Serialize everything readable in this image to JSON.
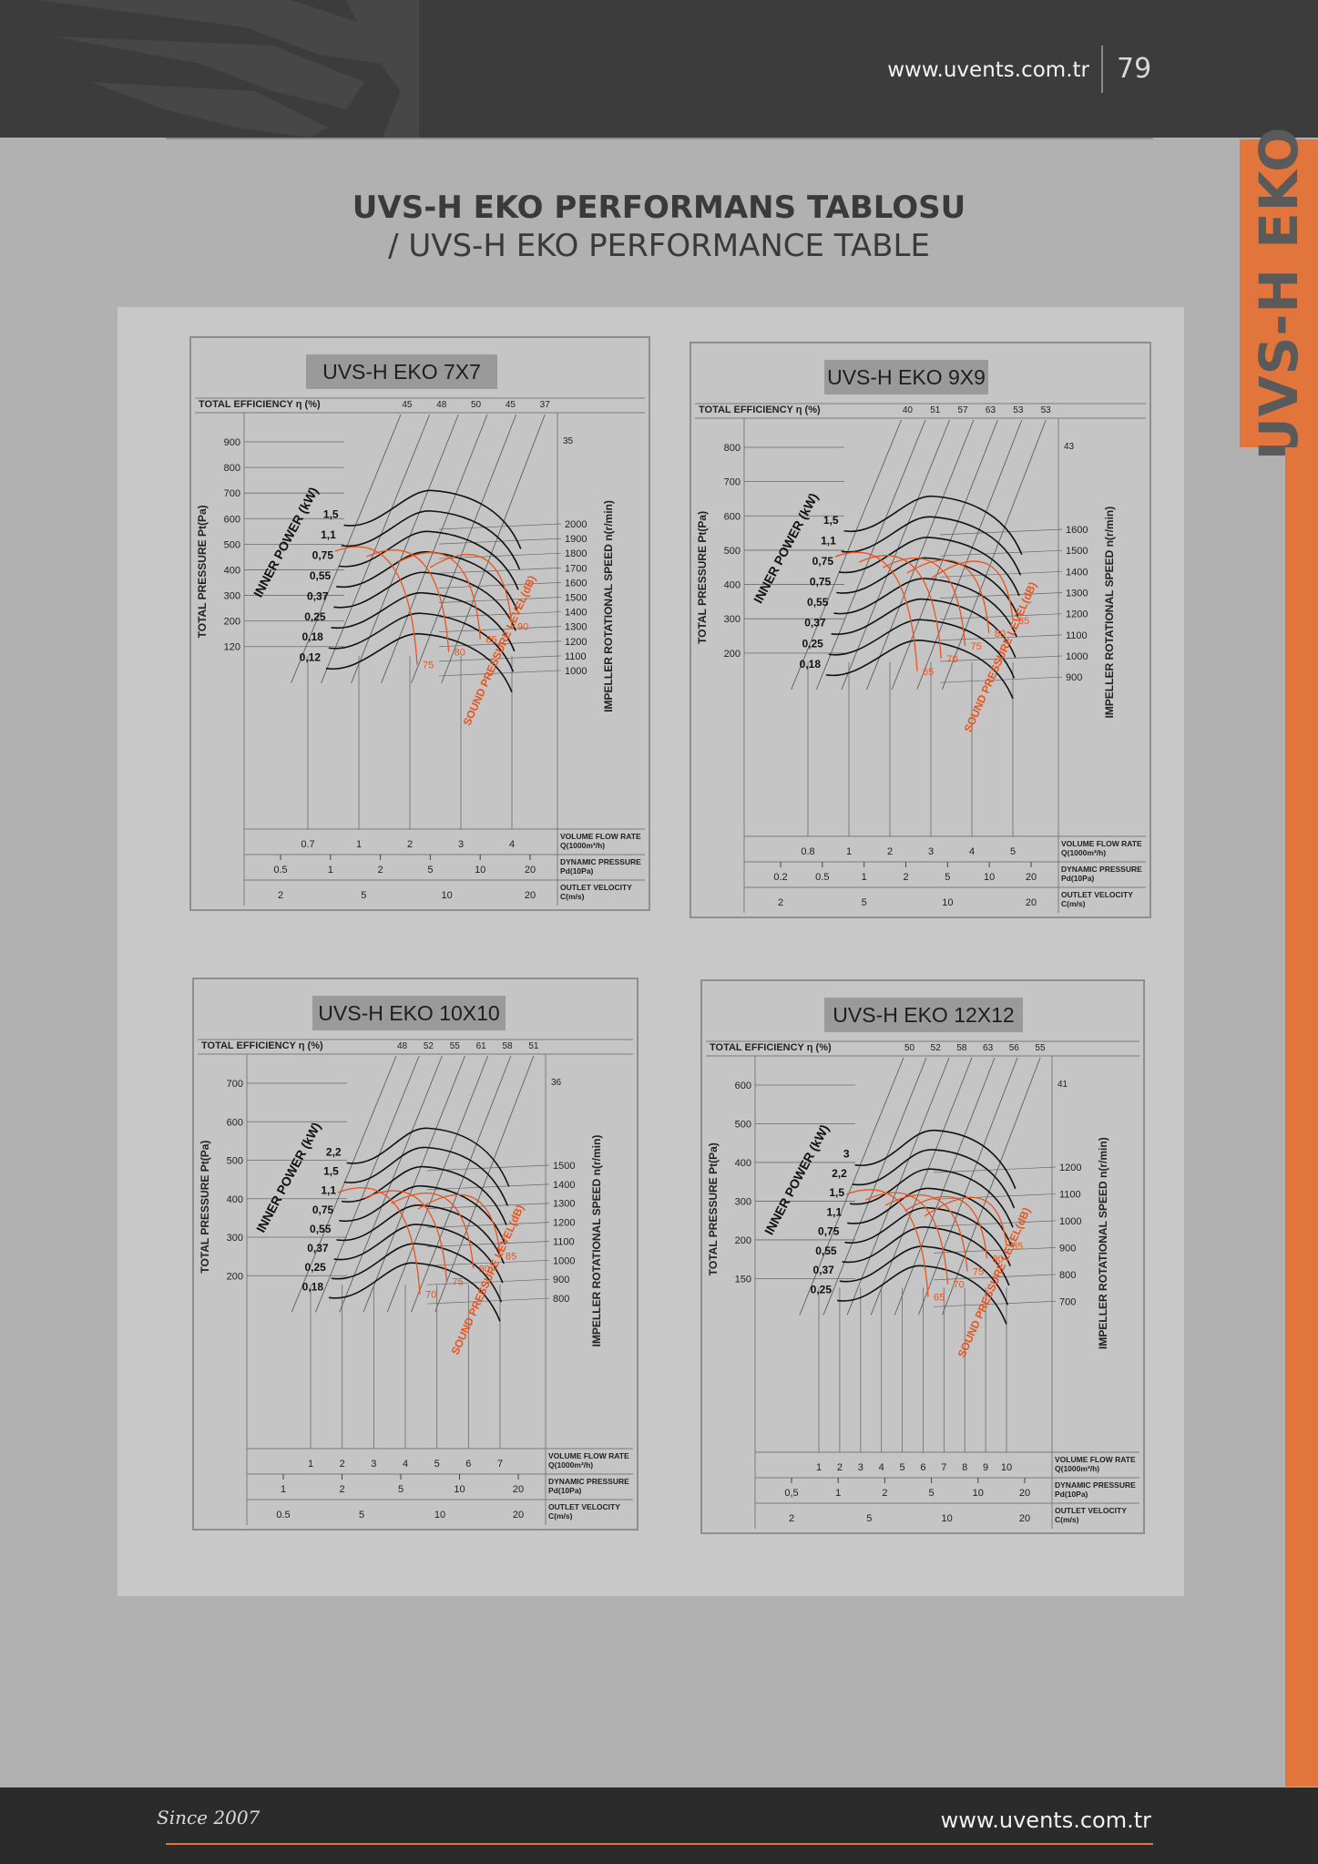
{
  "header": {
    "url": "www.uvents.com.tr",
    "page_number": "79"
  },
  "side_tab": {
    "label": "UVS-H EKO"
  },
  "title": {
    "main": "UVS-H EKO  PERFORMANS TABLOSU",
    "sub": "/ UVS-H EKO PERFORMANCE TABLE"
  },
  "footer": {
    "since": "Since 2007",
    "url": "www.uvents.com.tr"
  },
  "colors": {
    "accent": "#e1753c",
    "header_bg": "#3c3c3c",
    "panel_bg": "#c8c8c8",
    "sound_level": "#e8541e"
  },
  "chart_data": [
    {
      "type": "line",
      "title": "UVS-H EKO 7X7",
      "efficiency_label": "TOTAL EFFICIENCY η (%)",
      "efficiency_values": [
        "45",
        "48",
        "50",
        "45",
        "37"
      ],
      "efficiency_right": "35",
      "ylabel": "TOTAL PRESSURE Pt(Pa)",
      "y_ticks": [
        "900",
        "800",
        "700",
        "600",
        "500",
        "400",
        "300",
        "200",
        "120"
      ],
      "right_label": "IMPELLER ROTATIONAL SPEED n(r/min)",
      "speed_ticks": [
        "2000",
        "1900",
        "1800",
        "1700",
        "1600",
        "1500",
        "1400",
        "1300",
        "1200",
        "1100",
        "1000"
      ],
      "power_label": "INNER POWER (kW)",
      "power_values": [
        "0,12",
        "0,18",
        "0,25",
        "0,37",
        "0,55",
        "0,75",
        "1,1",
        "1,5"
      ],
      "sound_label": "SOUND PRESSURE LEVEL(dB)",
      "sound_values": [
        "75",
        "80",
        "85",
        "90"
      ],
      "flow_label": [
        "VOLUME FLOW RATE",
        "Q(1000m³/h)"
      ],
      "flow_ticks": [
        "0.7",
        "1",
        "2",
        "3",
        "4"
      ],
      "dyn_label": [
        "DYNAMIC PRESSURE",
        "Pd(10Pa)"
      ],
      "dyn_ticks": [
        "0.5",
        "1",
        "2",
        "5",
        "10",
        "20"
      ],
      "vel_label": [
        "OUTLET VELOCITY",
        "C(m/s)"
      ],
      "vel_ticks": [
        "2",
        "5",
        "10",
        "20"
      ]
    },
    {
      "type": "line",
      "title": "UVS-H EKO 9X9",
      "efficiency_label": "TOTAL EFFICIENCY η (%)",
      "efficiency_values": [
        "40",
        "51",
        "57",
        "63",
        "53",
        "53"
      ],
      "efficiency_right": "43",
      "ylabel": "TOTAL PRESSURE Pt(Pa)",
      "y_ticks": [
        "800",
        "700",
        "600",
        "500",
        "400",
        "300",
        "200"
      ],
      "right_label": "IMPELLER ROTATIONAL SPEED n(r/min)",
      "speed_ticks": [
        "1600",
        "1500",
        "1400",
        "1300",
        "1200",
        "1100",
        "1000",
        "900"
      ],
      "power_label": "INNER POWER (kW)",
      "power_values": [
        "0,18",
        "0,25",
        "0,37",
        "0,55",
        "0,75",
        "0,75",
        "1,1",
        "1,5"
      ],
      "sound_label": "SOUND PRESSURE LEVEL(dB)",
      "sound_values": [
        "65",
        "70",
        "75",
        "80",
        "85"
      ],
      "flow_label": [
        "VOLUME FLOW RATE",
        "Q(1000m³/h)"
      ],
      "flow_ticks": [
        "0.8",
        "1",
        "2",
        "3",
        "4",
        "5"
      ],
      "dyn_label": [
        "DYNAMIC PRESSURE",
        "Pd(10Pa)"
      ],
      "dyn_ticks": [
        "0.2",
        "0.5",
        "1",
        "2",
        "5",
        "10",
        "20"
      ],
      "vel_label": [
        "OUTLET VELOCITY",
        "C(m/s)"
      ],
      "vel_ticks": [
        "2",
        "5",
        "10",
        "20"
      ]
    },
    {
      "type": "line",
      "title": "UVS-H EKO 10X10",
      "efficiency_label": "TOTAL EFFICIENCY η (%)",
      "efficiency_values": [
        "48",
        "52",
        "55",
        "61",
        "58",
        "51"
      ],
      "efficiency_right": "36",
      "ylabel": "TOTAL PRESSURE Pt(Pa)",
      "y_ticks": [
        "700",
        "600",
        "500",
        "400",
        "300",
        "200"
      ],
      "right_label": "IMPELLER ROTATIONAL SPEED n(r/min)",
      "speed_ticks": [
        "1500",
        "1400",
        "1300",
        "1200",
        "1100",
        "1000",
        "900",
        "800"
      ],
      "power_label": "INNER POWER (kW)",
      "power_values": [
        "0,18",
        "0,25",
        "0,37",
        "0,55",
        "0,75",
        "1,1",
        "1,5",
        "2,2"
      ],
      "sound_label": "SOUND PRESSURE LEVEL(dB)",
      "sound_values": [
        "70",
        "75",
        "80",
        "85"
      ],
      "flow_label": [
        "VOLUME FLOW RATE",
        "Q(1000m³/h)"
      ],
      "flow_ticks": [
        "1",
        "2",
        "3",
        "4",
        "5",
        "6",
        "7"
      ],
      "dyn_label": [
        "DYNAMIC PRESSURE",
        "Pd(10Pa)"
      ],
      "dyn_ticks": [
        "1",
        "2",
        "5",
        "10",
        "20"
      ],
      "vel_label": [
        "OUTLET VELOCITY",
        "C(m/s)"
      ],
      "vel_ticks": [
        "0.5",
        "5",
        "10",
        "20"
      ]
    },
    {
      "type": "line",
      "title": "UVS-H EKO 12X12",
      "efficiency_label": "TOTAL EFFICIENCY η (%)",
      "efficiency_values": [
        "50",
        "52",
        "58",
        "63",
        "56",
        "55"
      ],
      "efficiency_right": "41",
      "ylabel": "TOTAL PRESSURE Pt(Pa)",
      "y_ticks": [
        "600",
        "500",
        "400",
        "300",
        "200",
        "150"
      ],
      "right_label": "IMPELLER ROTATIONAL SPEED n(r/min)",
      "speed_ticks": [
        "1200",
        "1100",
        "1000",
        "900",
        "800",
        "700"
      ],
      "power_label": "INNER POWER (kW)",
      "power_values": [
        "0,25",
        "0,37",
        "0,55",
        "0,75",
        "1,1",
        "1,5",
        "2,2",
        "3"
      ],
      "sound_label": "SOUND PRESSURE LEVEL(dB)",
      "sound_values": [
        "65",
        "70",
        "75",
        "80",
        "85"
      ],
      "flow_label": [
        "VOLUME FLOW RATE",
        "Q(1000m³/h)"
      ],
      "flow_ticks": [
        "1",
        "2",
        "3",
        "4",
        "5",
        "6",
        "7",
        "8",
        "9",
        "10"
      ],
      "dyn_label": [
        "DYNAMIC PRESSURE",
        "Pd(10Pa)"
      ],
      "dyn_ticks": [
        "0,5",
        "1",
        "2",
        "5",
        "10",
        "20"
      ],
      "vel_label": [
        "OUTLET VELOCITY",
        "C(m/s)"
      ],
      "vel_ticks": [
        "2",
        "5",
        "10",
        "20"
      ]
    }
  ]
}
